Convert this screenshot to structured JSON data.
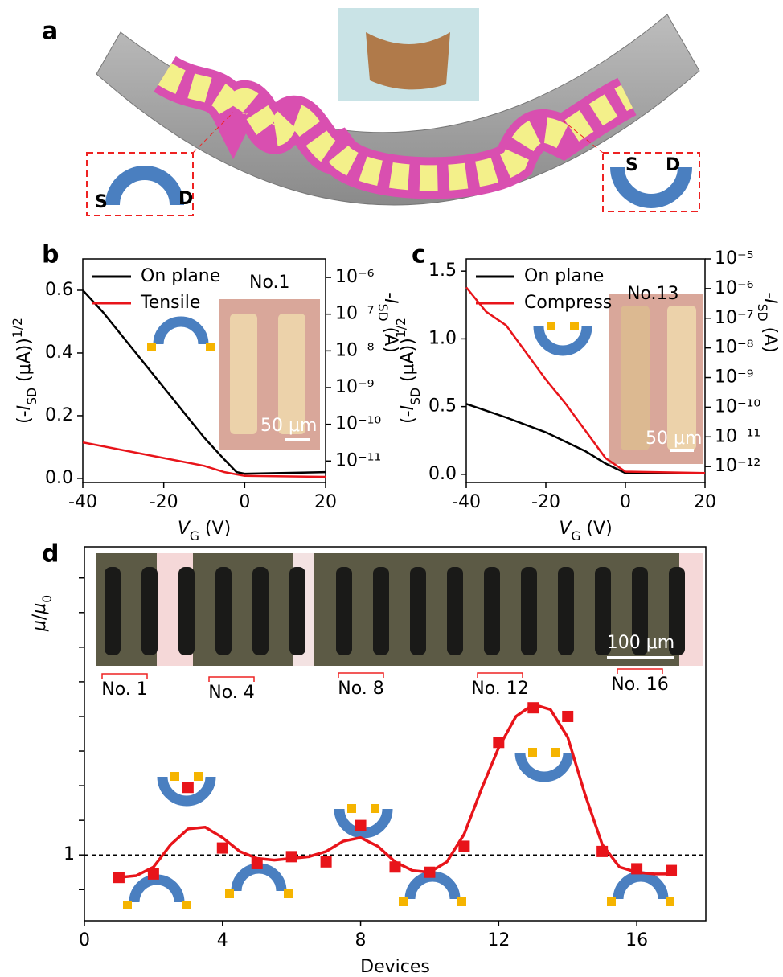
{
  "panel_a": {
    "label": "a",
    "left_inset": {
      "source": "S",
      "drain": "D"
    },
    "right_inset": {
      "source": "S",
      "drain": "D"
    }
  },
  "chart_data": [
    {
      "type": "line",
      "panel_label": "b",
      "xlabel": [
        {
          "text": "V",
          "style": "italic"
        },
        {
          "text": "G",
          "style": "sub"
        },
        {
          "text": " (V)"
        }
      ],
      "ylabel": [
        {
          "text": "(-"
        },
        {
          "text": "I",
          "style": "italic"
        },
        {
          "text": "SD",
          "style": "sub"
        },
        {
          "text": " (μA))"
        },
        {
          "text": "1/2",
          "style": "sup"
        }
      ],
      "y2label": [
        {
          "text": "-"
        },
        {
          "text": "I",
          "style": "italic"
        },
        {
          "text": "SD",
          "style": "sub"
        },
        {
          "text": " (A)"
        }
      ],
      "xlim": [
        -40,
        20
      ],
      "xticks": [
        -40,
        -20,
        0,
        20
      ],
      "ylim": [
        -0.013,
        0.7
      ],
      "yticks": [
        {
          "value": 0,
          "label": "0.0"
        },
        {
          "value": 0.2,
          "label": "0.2"
        },
        {
          "value": 0.4,
          "label": "0.4"
        },
        {
          "value": 0.6,
          "label": "0.6"
        }
      ],
      "y2scale": "log",
      "y2lim": [
        2.6e-12,
        3.2e-06
      ],
      "y2ticks": [
        {
          "value": 1e-11,
          "label": "10⁻¹¹"
        },
        {
          "value": 1e-10,
          "label": "10⁻¹⁰"
        },
        {
          "value": 1e-09,
          "label": "10⁻⁹"
        },
        {
          "value": 1e-08,
          "label": "10⁻⁸"
        },
        {
          "value": 1e-07,
          "label": "10⁻⁷"
        },
        {
          "value": 1e-06,
          "label": "10⁻⁶"
        }
      ],
      "legend": "upper left",
      "series": [
        {
          "name": "On plane",
          "color": "#000000",
          "x": [
            -40,
            -35,
            -30,
            -25,
            -20,
            -15,
            -10,
            -5,
            -2,
            0,
            20
          ],
          "values": [
            0.6,
            0.53,
            0.45,
            0.37,
            0.29,
            0.21,
            0.13,
            0.06,
            0.02,
            0.015,
            0.02
          ]
        },
        {
          "name": "Tensile",
          "color": "#e8141a",
          "x": [
            -40,
            -30,
            -20,
            -10,
            -5,
            0,
            20
          ],
          "values": [
            0.115,
            0.09,
            0.065,
            0.04,
            0.02,
            0.008,
            0.005
          ]
        }
      ],
      "annotations": {
        "sample": "No.1",
        "scale_bar": "50 μm"
      }
    },
    {
      "type": "line",
      "panel_label": "c",
      "xlabel": [
        {
          "text": "V",
          "style": "italic"
        },
        {
          "text": "G",
          "style": "sub"
        },
        {
          "text": " (V)"
        }
      ],
      "ylabel": [
        {
          "text": "(-"
        },
        {
          "text": "I",
          "style": "italic"
        },
        {
          "text": "SD",
          "style": "sub"
        },
        {
          "text": " (μA))"
        },
        {
          "text": "1/2",
          "style": "sup"
        }
      ],
      "y2label": [
        {
          "text": "-"
        },
        {
          "text": "I",
          "style": "italic"
        },
        {
          "text": "SD",
          "style": "sub"
        },
        {
          "text": " (A)"
        }
      ],
      "xlim": [
        -40,
        20
      ],
      "xticks": [
        -40,
        -20,
        0,
        20
      ],
      "ylim": [
        -0.06,
        1.59
      ],
      "yticks": [
        {
          "value": 0,
          "label": "0.0"
        },
        {
          "value": 0.5,
          "label": "0.5"
        },
        {
          "value": 1,
          "label": "1.0"
        },
        {
          "value": 1.5,
          "label": "1.5"
        }
      ],
      "y2scale": "log",
      "y2lim": [
        2.9e-13,
        1e-05
      ],
      "y2ticks": [
        {
          "value": 1e-12,
          "label": "10⁻¹²"
        },
        {
          "value": 1e-11,
          "label": "10⁻¹¹"
        },
        {
          "value": 1e-10,
          "label": "10⁻¹⁰"
        },
        {
          "value": 1e-09,
          "label": "10⁻⁹"
        },
        {
          "value": 1e-08,
          "label": "10⁻⁸"
        },
        {
          "value": 1e-07,
          "label": "10⁻⁷"
        },
        {
          "value": 1e-06,
          "label": "10⁻⁶"
        },
        {
          "value": 1e-05,
          "label": "10⁻⁵"
        }
      ],
      "legend": "upper left",
      "series": [
        {
          "name": "On plane",
          "color": "#000000",
          "x": [
            -40,
            -30,
            -20,
            -10,
            -5,
            0,
            20
          ],
          "values": [
            0.52,
            0.42,
            0.31,
            0.17,
            0.08,
            0.01,
            0.01
          ]
        },
        {
          "name": "Compress",
          "color": "#e8141a",
          "x": [
            -40,
            -35,
            -30,
            -25,
            -20,
            -15,
            -10,
            -5,
            0,
            20
          ],
          "values": [
            1.38,
            1.2,
            1.1,
            0.9,
            0.7,
            0.52,
            0.32,
            0.12,
            0.02,
            0.01
          ]
        }
      ],
      "annotations": {
        "sample": "No.13",
        "scale_bar": "50 μm"
      }
    },
    {
      "type": "scatter",
      "panel_label": "d",
      "xlabel": [
        {
          "text": "Devices"
        }
      ],
      "ylabel": [
        {
          "text": "μ",
          "style": "italic"
        },
        {
          "text": "/"
        },
        {
          "text": "μ",
          "style": "italic"
        },
        {
          "text": "0",
          "style": "sub"
        }
      ],
      "xlim": [
        0,
        18
      ],
      "xticks": [
        0,
        4,
        8,
        12,
        16
      ],
      "ylim": [
        0.62,
        2.78
      ],
      "yticks": [
        1
      ],
      "yminor": [
        0.8,
        1.2,
        1.4,
        1.6,
        1.8,
        2.0,
        2.2,
        2.4,
        2.6
      ],
      "reference_line": 1,
      "points": {
        "color": "#e8141a",
        "x": [
          1,
          2,
          3,
          4,
          5,
          6,
          7,
          8,
          9,
          10,
          11,
          12,
          13,
          14,
          15,
          16,
          17
        ],
        "values": [
          0.87,
          0.89,
          1.39,
          1.04,
          0.95,
          0.99,
          0.96,
          1.17,
          0.93,
          0.9,
          1.05,
          1.65,
          1.85,
          1.8,
          1.02,
          0.92,
          0.91
        ]
      },
      "fit": {
        "color": "#e8141a",
        "x": [
          1,
          1.5,
          2,
          2.5,
          3,
          3.5,
          4,
          4.5,
          5,
          5.5,
          6,
          6.5,
          7,
          7.5,
          8,
          8.5,
          9,
          9.5,
          10,
          10.5,
          11,
          11.5,
          12,
          12.5,
          13,
          13.5,
          14,
          14.5,
          15,
          15.5,
          16,
          16.5,
          17
        ],
        "values": [
          0.87,
          0.88,
          0.93,
          1.06,
          1.15,
          1.16,
          1.1,
          1.02,
          0.98,
          0.97,
          0.98,
          0.99,
          1.02,
          1.08,
          1.1,
          1.05,
          0.96,
          0.91,
          0.9,
          0.96,
          1.12,
          1.38,
          1.62,
          1.8,
          1.87,
          1.84,
          1.68,
          1.35,
          1.06,
          0.93,
          0.9,
          0.89,
          0.89
        ]
      },
      "photo_labels": [
        "No. 1",
        "No. 4",
        "No. 8",
        "No. 12",
        "No. 16"
      ],
      "scale_bar": "100 μm"
    }
  ]
}
